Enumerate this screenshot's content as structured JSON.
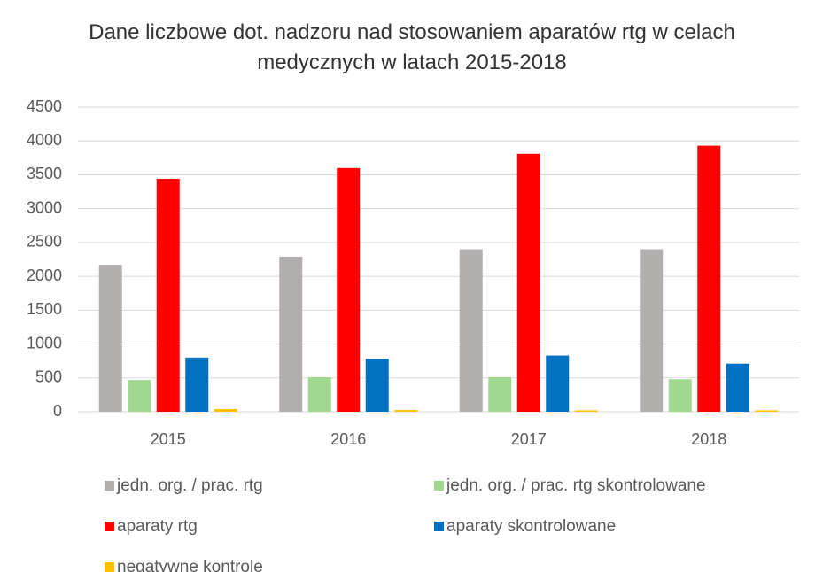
{
  "chart_data": {
    "type": "bar",
    "title": "Dane liczbowe dot. nadzoru nad stosowaniem aparatów rtg w celach medycznych w latach 2015-2018",
    "categories": [
      "2015",
      "2016",
      "2017",
      "2018"
    ],
    "series": [
      {
        "name": "jedn. org. / prac. rtg",
        "color": "#b4afaf",
        "values": [
          2170,
          2290,
          2400,
          2400
        ]
      },
      {
        "name": "jedn. org. / prac. rtg skontrolowane",
        "color": "#a0d890",
        "values": [
          470,
          510,
          510,
          480
        ]
      },
      {
        "name": "aparaty rtg",
        "color": "#ff0000",
        "values": [
          3440,
          3600,
          3810,
          3930
        ]
      },
      {
        "name": "aparaty skontrolowane",
        "color": "#0070c0",
        "values": [
          800,
          780,
          830,
          710
        ]
      },
      {
        "name": "negatywne kontrole",
        "color": "#ffc000",
        "values": [
          40,
          25,
          20,
          20
        ]
      }
    ],
    "ylim": [
      0,
      4500
    ],
    "yticks": [
      0,
      500,
      1000,
      1500,
      2000,
      2500,
      3000,
      3500,
      4000,
      4500
    ],
    "grid": true,
    "legend": "bottom"
  }
}
